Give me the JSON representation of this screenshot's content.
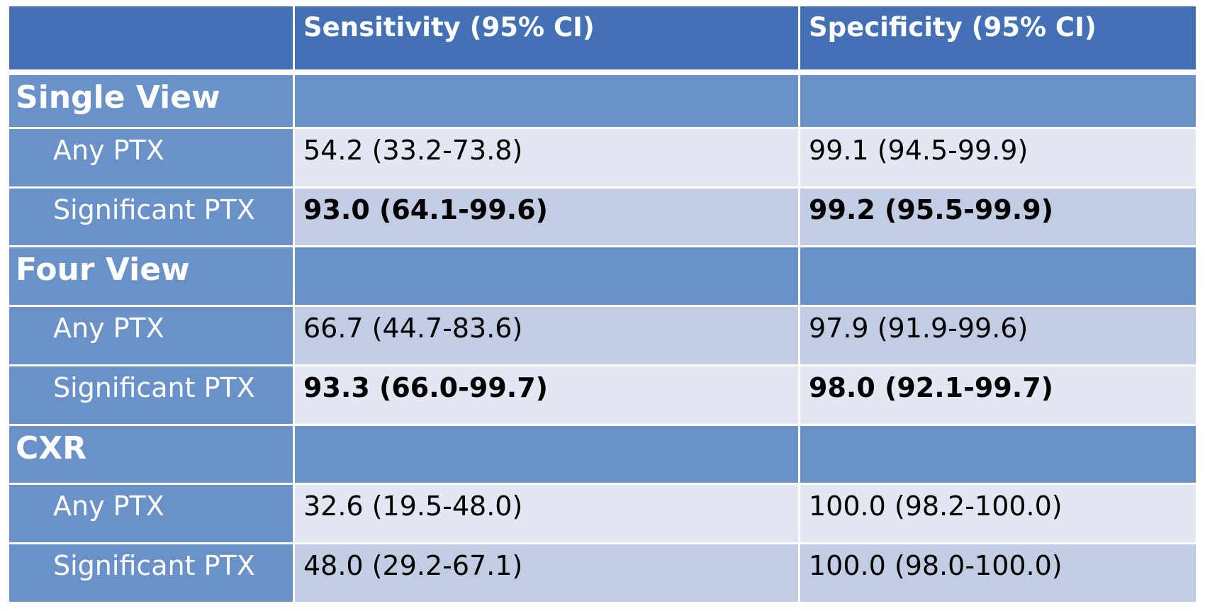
{
  "header": {
    "corner": "",
    "col_sensitivity": "Sensitivity (95% CI)",
    "col_specificity": "Specificity (95% CI)"
  },
  "sections": [
    {
      "title": "Single View",
      "rows": [
        {
          "label": "Any PTX",
          "sensitivity": "54.2 (33.2-73.8)",
          "specificity": "99.1 (94.5-99.9)",
          "bold": false
        },
        {
          "label": "Significant PTX",
          "sensitivity": "93.0 (64.1-99.6)",
          "specificity": "99.2 (95.5-99.9)",
          "bold": true
        }
      ]
    },
    {
      "title": "Four View",
      "rows": [
        {
          "label": "Any PTX",
          "sensitivity": "66.7 (44.7-83.6)",
          "specificity": "97.9 (91.9-99.6)",
          "bold": false
        },
        {
          "label": "Significant PTX",
          "sensitivity": "93.3 (66.0-99.7)",
          "specificity": "98.0 (92.1-99.7)",
          "bold": true
        }
      ]
    },
    {
      "title": "CXR",
      "rows": [
        {
          "label": "Any PTX",
          "sensitivity": "32.6 (19.5-48.0)",
          "specificity": "100.0 (98.2-100.0)",
          "bold": false
        },
        {
          "label": "Significant PTX",
          "sensitivity": "48.0 (29.2-67.1)",
          "specificity": "100.0 (98.0-100.0)",
          "bold": false
        }
      ]
    }
  ],
  "colors": {
    "header": "#4470b5",
    "section": "#6a91c8",
    "row_light": "#e2e7f2",
    "row_mid": "#c2cde3"
  }
}
